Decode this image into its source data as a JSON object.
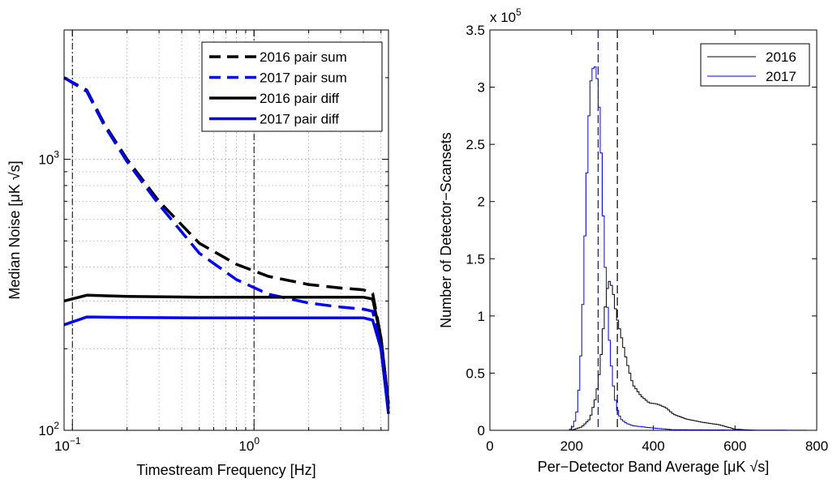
{
  "chart_data": [
    {
      "type": "line",
      "title": "",
      "xlabel": "Timestream Frequency [Hz]",
      "ylabel": "Median Noise [μK √s]",
      "xscale": "log",
      "yscale": "log",
      "xlim": [
        0.09,
        5.5
      ],
      "ylim": [
        100,
        3000
      ],
      "grid": true,
      "legend_position": "top-right",
      "x_ticks": [
        {
          "value": 0.1,
          "base": "10",
          "exp": "−1"
        },
        {
          "value": 1,
          "base": "10",
          "exp": "0"
        }
      ],
      "y_ticks": [
        {
          "value": 100,
          "base": "10",
          "exp": "2"
        },
        {
          "value": 1000,
          "base": "10",
          "exp": "3"
        }
      ],
      "vlines": [
        0.1,
        1
      ],
      "series": [
        {
          "name": "2016 pair sum",
          "color": "#000000",
          "dash": true,
          "x": [
            0.09,
            0.12,
            0.15,
            0.2,
            0.3,
            0.5,
            0.8,
            1.2,
            2,
            3,
            4,
            4.5,
            5,
            5.5
          ],
          "y": [
            2000,
            1800,
            1350,
            1000,
            700,
            490,
            410,
            370,
            345,
            335,
            330,
            320,
            220,
            125
          ]
        },
        {
          "name": "2017 pair sum",
          "color": "#0000ff",
          "dash": true,
          "x": [
            0.09,
            0.12,
            0.15,
            0.2,
            0.3,
            0.5,
            0.8,
            1.2,
            2,
            3,
            4,
            4.5,
            5,
            5.5
          ],
          "y": [
            2000,
            1780,
            1330,
            980,
            680,
            450,
            360,
            318,
            295,
            285,
            280,
            275,
            200,
            120
          ]
        },
        {
          "name": "2016 pair diff",
          "color": "#000000",
          "dash": false,
          "x": [
            0.09,
            0.12,
            0.2,
            0.5,
            1,
            2,
            4,
            4.5,
            5,
            5.5
          ],
          "y": [
            300,
            315,
            312,
            310,
            310,
            310,
            310,
            305,
            220,
            125
          ]
        },
        {
          "name": "2017 pair diff",
          "color": "#0000ff",
          "dash": false,
          "x": [
            0.09,
            0.12,
            0.2,
            0.5,
            1,
            2,
            4,
            4.5,
            5,
            5.5
          ],
          "y": [
            245,
            262,
            261,
            260,
            260,
            260,
            260,
            255,
            200,
            115
          ]
        }
      ]
    },
    {
      "type": "line",
      "title": "",
      "multiplier_label": {
        "base": "x 10",
        "exp": "5"
      },
      "xlabel": "Per−Detector Band Average [μK √s]",
      "ylabel": "Number of Detector−Scansets",
      "xlim": [
        0,
        800
      ],
      "ylim": [
        0,
        3.5
      ],
      "grid": false,
      "legend_position": "top-right",
      "x_ticks": [
        "0",
        "200",
        "400",
        "600",
        "800"
      ],
      "y_ticks": [
        "0",
        "0.5",
        "1",
        "1.5",
        "2",
        "2.5",
        "3",
        "3.5"
      ],
      "vlines": [
        {
          "x": 265,
          "color": "#0000ff"
        },
        {
          "x": 312,
          "color": "#000000"
        }
      ],
      "series": [
        {
          "name": "2016",
          "color": "#000000",
          "x": [
            0,
            200,
            225,
            245,
            260,
            270,
            280,
            290,
            300,
            310,
            320,
            335,
            350,
            370,
            390,
            410,
            430,
            450,
            480,
            520,
            560,
            600,
            650,
            800
          ],
          "y": [
            0,
            0,
            0.03,
            0.1,
            0.3,
            0.55,
            1.0,
            1.32,
            1.25,
            1.0,
            0.85,
            0.6,
            0.4,
            0.3,
            0.24,
            0.23,
            0.2,
            0.14,
            0.1,
            0.07,
            0.05,
            0.01,
            0,
            0
          ]
        },
        {
          "name": "2017",
          "color": "#0000ff",
          "x": [
            0,
            195,
            205,
            215,
            225,
            235,
            245,
            255,
            262,
            270,
            280,
            290,
            300,
            310,
            320,
            335,
            350,
            400,
            450,
            800
          ],
          "y": [
            0,
            0,
            0.04,
            0.2,
            0.8,
            2.0,
            3.0,
            3.22,
            3.1,
            2.7,
            1.6,
            0.9,
            0.45,
            0.2,
            0.1,
            0.06,
            0.04,
            0.02,
            0.005,
            0
          ]
        }
      ]
    }
  ]
}
